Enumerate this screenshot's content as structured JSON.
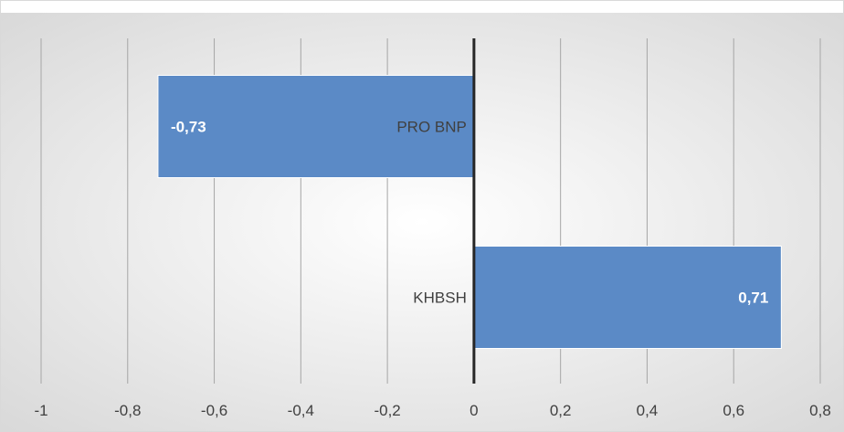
{
  "chart_data": {
    "type": "bar",
    "orientation": "horizontal",
    "categories": [
      "PRO BNP",
      "KHBSH"
    ],
    "values": [
      -0.73,
      0.71
    ],
    "data_labels": [
      "-0,73",
      "0,71"
    ],
    "xlim": [
      -1,
      0.8
    ],
    "x_ticks": [
      -1,
      -0.8,
      -0.6,
      -0.4,
      -0.2,
      0,
      0.2,
      0.4,
      0.6,
      0.8
    ],
    "x_tick_labels": [
      "-1",
      "-0,8",
      "-0,6",
      "-0,4",
      "-0,2",
      "0",
      "0,2",
      "0,4",
      "0,6",
      "0,8"
    ],
    "title": "",
    "xlabel": "",
    "ylabel": "",
    "grid": "vertical",
    "legend": "none",
    "bar_color": "#5b8ac6",
    "axis_color": "#262626",
    "grid_color": "#a6a6a6"
  }
}
